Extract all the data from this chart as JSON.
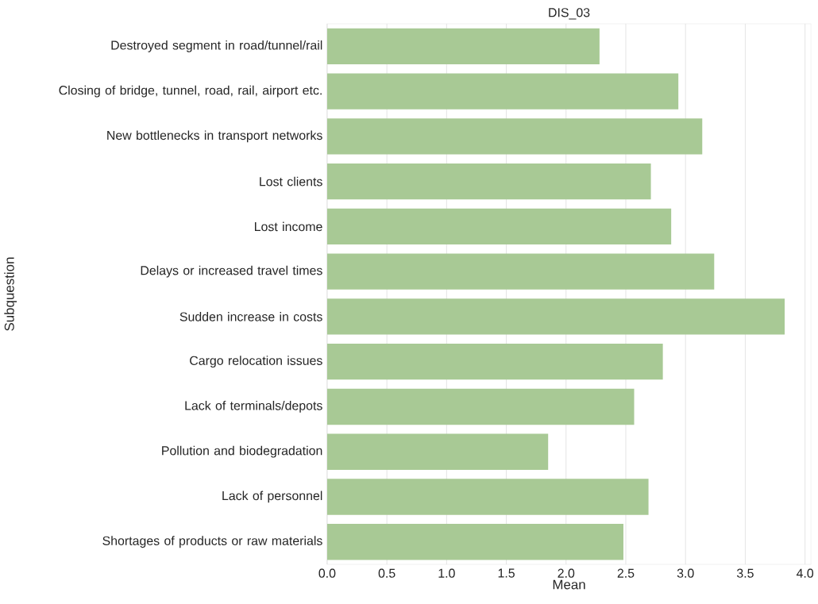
{
  "chart_data": {
    "type": "bar",
    "orientation": "horizontal",
    "title": "DIS_03",
    "xlabel": "Mean",
    "ylabel": "Subquestion",
    "categories": [
      "Destroyed segment in road/tunnel/rail",
      "Closing of bridge, tunnel, road, rail, airport etc.",
      "New bottlenecks in transport networks",
      "Lost clients",
      "Lost income",
      "Delays or increased travel times",
      "Sudden increase in costs",
      "Cargo relocation issues",
      "Lack of terminals/depots",
      "Pollution and biodegradation",
      "Lack of personnel",
      "Shortages of products or raw materials"
    ],
    "values": [
      2.28,
      2.94,
      3.14,
      2.71,
      2.88,
      3.24,
      3.83,
      2.81,
      2.57,
      1.85,
      2.69,
      2.48
    ],
    "color": "#a8c995",
    "xlim": [
      0,
      4.05
    ],
    "xticks": [
      {
        "value": 0,
        "label": "0.0"
      },
      {
        "value": 0.5,
        "label": "0.5"
      },
      {
        "value": 1,
        "label": "1.0"
      },
      {
        "value": 1.5,
        "label": "1.5"
      },
      {
        "value": 2,
        "label": "2.0"
      },
      {
        "value": 2.5,
        "label": "2.5"
      },
      {
        "value": 3,
        "label": "3.0"
      },
      {
        "value": 3.5,
        "label": "3.5"
      },
      {
        "value": 4,
        "label": "4.0"
      }
    ],
    "grid": "x"
  }
}
